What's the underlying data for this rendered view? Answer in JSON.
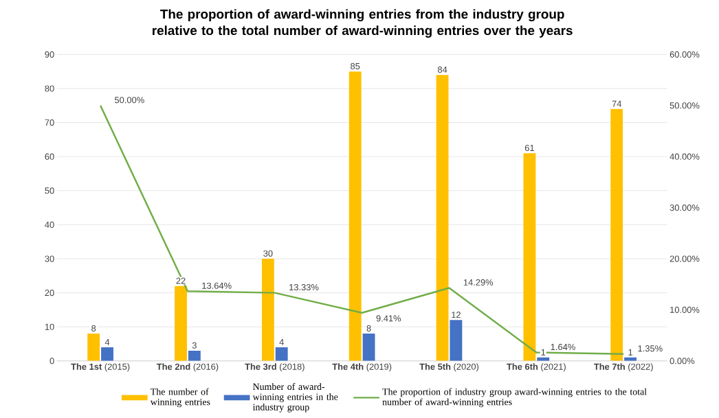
{
  "chart_data": {
    "type": "bar",
    "title": "The proportion of award-winning entries from the industry group relative to the total number of award-winning entries over the years",
    "categories": [
      "**The 1st** (2015)",
      "**The 2nd** (2016)",
      "**The 3rd** (2018)",
      "**The 4th** (2019)",
      "**The 5th** (2020)",
      "**The 6th** (2021)",
      "**The 7th** (2022)"
    ],
    "series": [
      {
        "name": "The number of winning entries",
        "type": "bar",
        "color": "#ffc000",
        "values": [
          8,
          22,
          30,
          85,
          84,
          61,
          74
        ],
        "value_labels": [
          "8",
          "22",
          "30",
          "85",
          "84",
          "61",
          "74"
        ]
      },
      {
        "name": "Number of award-winning entries in the industry group",
        "type": "bar",
        "color": "#4472c4",
        "values": [
          4,
          3,
          4,
          8,
          12,
          1,
          1
        ],
        "value_labels": [
          "4",
          "3",
          "4",
          "8",
          "12",
          "1",
          "1"
        ]
      },
      {
        "name": "The proportion of industry group award-winning entries to the total number of award-winning entries",
        "type": "line",
        "axis": "y2",
        "color": "#70ad47",
        "values": [
          50,
          13.64,
          13.33,
          9.41,
          14.29,
          1.64,
          1.35
        ],
        "value_labels": [
          "50.00%",
          "13.64%",
          "13.33%",
          "9.41%",
          "14.29%",
          "1.64%",
          "1.35%"
        ]
      }
    ],
    "ylim": [
      0,
      90
    ],
    "yticks": [
      0,
      10,
      20,
      30,
      40,
      50,
      60,
      70,
      80,
      90
    ],
    "y2lim": [
      0,
      60
    ],
    "y2ticks": [
      {
        "value": 0,
        "label": "0.00%"
      },
      {
        "value": 10,
        "label": "10.00%"
      },
      {
        "value": 20,
        "label": "20.00%"
      },
      {
        "value": 30,
        "label": "30.00%"
      },
      {
        "value": 40,
        "label": "40.00%"
      },
      {
        "value": 50,
        "label": "50.00%"
      },
      {
        "value": 60,
        "label": "60.00%"
      }
    ],
    "grid": "y",
    "legend": "bottom"
  }
}
